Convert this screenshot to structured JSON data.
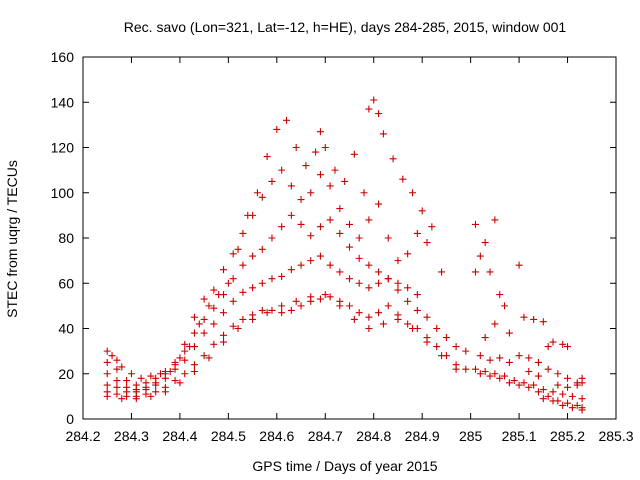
{
  "chart_data": {
    "type": "scatter",
    "title": "Rec. savo (Lon=321, Lat=-12, h=HE), days 284-285, 2015, window 001",
    "xlabel": "GPS time / Days of year 2015",
    "ylabel": "STEC from uqrg / TECUs",
    "xlim": [
      284.2,
      285.3
    ],
    "ylim": [
      0,
      160
    ],
    "x_ticks": [
      284.2,
      284.3,
      284.4,
      284.5,
      284.6,
      284.7,
      284.8,
      284.9,
      285,
      285.1,
      285.2,
      285.3
    ],
    "x_tick_labels": [
      "284.2",
      "284.3",
      "284.4",
      "284.5",
      "284.6",
      "284.7",
      "284.8",
      "284.9",
      "285",
      "285.1",
      "285.2",
      "285.3"
    ],
    "y_ticks": [
      0,
      20,
      40,
      60,
      80,
      100,
      120,
      140,
      160
    ],
    "y_tick_labels": [
      "0",
      "20",
      "40",
      "60",
      "80",
      "100",
      "120",
      "140",
      "160"
    ],
    "grid": false,
    "marker": "plus",
    "color": "#cc0000",
    "series": [
      {
        "points": [
          [
            284.25,
            30
          ],
          [
            284.26,
            28
          ],
          [
            284.27,
            26
          ],
          [
            284.28,
            23
          ],
          [
            284.3,
            20
          ],
          [
            284.32,
            18
          ],
          [
            284.34,
            19
          ],
          [
            284.36,
            20
          ],
          [
            284.38,
            21
          ],
          [
            284.4,
            27
          ],
          [
            284.42,
            32
          ],
          [
            284.44,
            42
          ],
          [
            284.46,
            50
          ],
          [
            284.48,
            55
          ],
          [
            284.5,
            60
          ],
          [
            284.52,
            75
          ],
          [
            284.54,
            90
          ],
          [
            284.56,
            100
          ],
          [
            284.58,
            116
          ],
          [
            284.6,
            128
          ],
          [
            284.62,
            132
          ],
          [
            284.64,
            120
          ],
          [
            284.66,
            112
          ],
          [
            284.68,
            118
          ],
          [
            284.69,
            127
          ],
          [
            284.7,
            120
          ],
          [
            284.72,
            110
          ],
          [
            284.74,
            105
          ],
          [
            284.76,
            117
          ],
          [
            284.78,
            100
          ],
          [
            284.79,
            137
          ],
          [
            284.8,
            141
          ],
          [
            284.81,
            135
          ],
          [
            284.82,
            126
          ],
          [
            284.84,
            115
          ],
          [
            284.86,
            106
          ],
          [
            284.88,
            100
          ],
          [
            284.9,
            92
          ],
          [
            284.92,
            85
          ],
          [
            284.94,
            65
          ]
        ]
      },
      {
        "points": [
          [
            284.25,
            25
          ],
          [
            284.27,
            22
          ],
          [
            284.29,
            17
          ],
          [
            284.31,
            15
          ],
          [
            284.33,
            16
          ],
          [
            284.35,
            18
          ],
          [
            284.37,
            21
          ],
          [
            284.39,
            25
          ],
          [
            284.41,
            33
          ],
          [
            284.43,
            45
          ],
          [
            284.45,
            53
          ],
          [
            284.47,
            57
          ],
          [
            284.49,
            66
          ],
          [
            284.51,
            73
          ],
          [
            284.53,
            82
          ],
          [
            284.55,
            90
          ],
          [
            284.57,
            98
          ],
          [
            284.59,
            105
          ],
          [
            284.61,
            110
          ],
          [
            284.63,
            103
          ],
          [
            284.65,
            97
          ],
          [
            284.67,
            100
          ],
          [
            284.69,
            108
          ],
          [
            284.71,
            103
          ],
          [
            284.73,
            93
          ],
          [
            284.75,
            86
          ],
          [
            284.77,
            80
          ],
          [
            284.79,
            88
          ],
          [
            284.81,
            95
          ],
          [
            284.83,
            80
          ],
          [
            284.85,
            70
          ],
          [
            284.87,
            73
          ],
          [
            284.89,
            82
          ],
          [
            284.91,
            78
          ]
        ]
      },
      {
        "points": [
          [
            284.25,
            20
          ],
          [
            284.27,
            17
          ],
          [
            284.29,
            14
          ],
          [
            284.31,
            13
          ],
          [
            284.33,
            14
          ],
          [
            284.35,
            16
          ],
          [
            284.37,
            20
          ],
          [
            284.39,
            24
          ],
          [
            284.41,
            30
          ],
          [
            284.43,
            38
          ],
          [
            284.45,
            44
          ],
          [
            284.47,
            49
          ],
          [
            284.49,
            55
          ],
          [
            284.51,
            62
          ],
          [
            284.53,
            68
          ],
          [
            284.55,
            72
          ],
          [
            284.57,
            75
          ],
          [
            284.59,
            80
          ],
          [
            284.61,
            85
          ],
          [
            284.63,
            90
          ],
          [
            284.65,
            86
          ],
          [
            284.67,
            81
          ],
          [
            284.69,
            85
          ],
          [
            284.71,
            88
          ],
          [
            284.73,
            82
          ],
          [
            284.75,
            76
          ],
          [
            284.77,
            71
          ],
          [
            284.79,
            68
          ],
          [
            284.81,
            65
          ],
          [
            284.83,
            62
          ],
          [
            284.85,
            60
          ],
          [
            284.87,
            58
          ],
          [
            284.89,
            55
          ]
        ]
      },
      {
        "points": [
          [
            284.25,
            15
          ],
          [
            284.27,
            14
          ],
          [
            284.29,
            12
          ],
          [
            284.31,
            12
          ],
          [
            284.33,
            13
          ],
          [
            284.35,
            15
          ],
          [
            284.37,
            18
          ],
          [
            284.39,
            22
          ],
          [
            284.41,
            26
          ],
          [
            284.43,
            32
          ],
          [
            284.45,
            38
          ],
          [
            284.47,
            42
          ],
          [
            284.49,
            47
          ],
          [
            284.51,
            52
          ],
          [
            284.53,
            56
          ],
          [
            284.55,
            58
          ],
          [
            284.57,
            60
          ],
          [
            284.59,
            62
          ],
          [
            284.61,
            63
          ],
          [
            284.63,
            66
          ],
          [
            284.65,
            68
          ],
          [
            284.67,
            70
          ],
          [
            284.69,
            72
          ],
          [
            284.71,
            68
          ],
          [
            284.73,
            65
          ],
          [
            284.75,
            62
          ],
          [
            284.77,
            60
          ],
          [
            284.79,
            58
          ],
          [
            284.81,
            60
          ],
          [
            284.83,
            62
          ],
          [
            284.85,
            57
          ],
          [
            284.87,
            52
          ],
          [
            284.89,
            48
          ],
          [
            284.91,
            45
          ],
          [
            284.93,
            40
          ],
          [
            284.95,
            36
          ],
          [
            284.97,
            32
          ],
          [
            284.99,
            30
          ]
        ]
      },
      {
        "points": [
          [
            284.25,
            12
          ],
          [
            284.27,
            11
          ],
          [
            284.29,
            10
          ],
          [
            284.31,
            10
          ],
          [
            284.33,
            11
          ],
          [
            284.35,
            12
          ],
          [
            284.37,
            14
          ],
          [
            284.39,
            17
          ],
          [
            284.41,
            20
          ],
          [
            284.43,
            24
          ],
          [
            284.45,
            28
          ],
          [
            284.47,
            33
          ],
          [
            284.49,
            37
          ],
          [
            284.51,
            41
          ],
          [
            284.53,
            44
          ],
          [
            284.55,
            46
          ],
          [
            284.57,
            48
          ],
          [
            284.59,
            48
          ],
          [
            284.61,
            47
          ],
          [
            284.63,
            48
          ],
          [
            284.65,
            50
          ],
          [
            284.67,
            52
          ],
          [
            284.69,
            53
          ],
          [
            284.71,
            54
          ],
          [
            284.73,
            52
          ],
          [
            284.75,
            50
          ],
          [
            284.77,
            47
          ],
          [
            284.79,
            45
          ],
          [
            284.81,
            47
          ],
          [
            284.83,
            50
          ],
          [
            284.85,
            46
          ],
          [
            284.87,
            42
          ],
          [
            284.89,
            40
          ],
          [
            284.91,
            36
          ],
          [
            284.93,
            32
          ],
          [
            284.95,
            28
          ],
          [
            284.97,
            24
          ],
          [
            284.99,
            22
          ]
        ]
      },
      {
        "points": [
          [
            284.25,
            10
          ],
          [
            284.28,
            9
          ],
          [
            284.31,
            9
          ],
          [
            284.34,
            10
          ],
          [
            284.37,
            12
          ],
          [
            284.4,
            16
          ],
          [
            284.43,
            21
          ],
          [
            284.46,
            27
          ],
          [
            284.49,
            34
          ],
          [
            284.52,
            40
          ],
          [
            284.55,
            44
          ],
          [
            284.58,
            47
          ],
          [
            284.61,
            50
          ],
          [
            284.64,
            52
          ],
          [
            284.67,
            54
          ],
          [
            284.7,
            55
          ],
          [
            284.73,
            50
          ],
          [
            284.76,
            44
          ],
          [
            284.79,
            40
          ],
          [
            284.82,
            42
          ],
          [
            284.85,
            44
          ],
          [
            284.88,
            40
          ],
          [
            284.91,
            34
          ],
          [
            284.94,
            28
          ],
          [
            284.97,
            22
          ]
        ]
      },
      {
        "points": [
          [
            285.01,
            86
          ],
          [
            285.03,
            78
          ],
          [
            285.05,
            88
          ],
          [
            285.1,
            68
          ],
          [
            285.02,
            72
          ],
          [
            285.04,
            65
          ],
          [
            285.01,
            65
          ],
          [
            285.06,
            55
          ],
          [
            285.07,
            50
          ],
          [
            285.05,
            42
          ],
          [
            285.03,
            36
          ],
          [
            285.08,
            38
          ],
          [
            285.11,
            45
          ],
          [
            285.13,
            44
          ],
          [
            285.15,
            43
          ],
          [
            285.16,
            32
          ],
          [
            285.17,
            34
          ],
          [
            285.19,
            33
          ],
          [
            285.2,
            32
          ],
          [
            285.02,
            28
          ],
          [
            285.04,
            26
          ],
          [
            285.06,
            27
          ],
          [
            285.08,
            25
          ],
          [
            285.1,
            28
          ],
          [
            285.12,
            27
          ],
          [
            285.14,
            25
          ],
          [
            285.16,
            22
          ],
          [
            285.18,
            20
          ],
          [
            285.2,
            18
          ],
          [
            285.22,
            16
          ],
          [
            285.23,
            18
          ],
          [
            285.01,
            22
          ],
          [
            285.03,
            21
          ],
          [
            285.05,
            20
          ],
          [
            285.07,
            19
          ],
          [
            285.09,
            17
          ],
          [
            285.11,
            16
          ],
          [
            285.13,
            15
          ],
          [
            285.15,
            13
          ],
          [
            285.17,
            12
          ],
          [
            285.19,
            11
          ],
          [
            285.21,
            10
          ],
          [
            285.23,
            9
          ],
          [
            285.02,
            20
          ],
          [
            285.04,
            19
          ],
          [
            285.06,
            18
          ],
          [
            285.08,
            16
          ],
          [
            285.1,
            15
          ],
          [
            285.12,
            14
          ],
          [
            285.14,
            12
          ],
          [
            285.16,
            10
          ],
          [
            285.18,
            8
          ],
          [
            285.2,
            7
          ],
          [
            285.22,
            6
          ],
          [
            285.23,
            5
          ],
          [
            285.15,
            9
          ],
          [
            285.17,
            8
          ],
          [
            285.19,
            6
          ],
          [
            285.21,
            5
          ],
          [
            285.23,
            4
          ],
          [
            285.18,
            15
          ],
          [
            285.2,
            14
          ],
          [
            285.22,
            15
          ],
          [
            285.23,
            16
          ],
          [
            285.14,
            19
          ],
          [
            285.12,
            21
          ]
        ]
      }
    ]
  }
}
